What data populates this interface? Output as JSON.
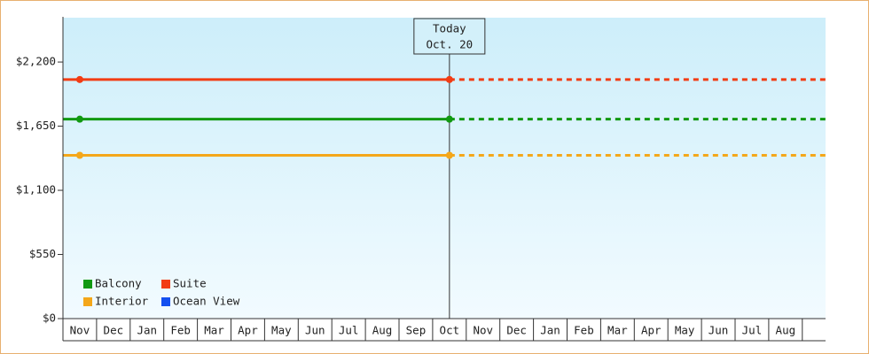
{
  "chart_data": {
    "type": "line",
    "categories": [
      "Nov",
      "Dec",
      "Jan",
      "Feb",
      "Mar",
      "Apr",
      "May",
      "Jun",
      "Jul",
      "Aug",
      "Sep",
      "Oct",
      "Nov",
      "Dec",
      "Jan",
      "Feb",
      "Mar",
      "Apr",
      "May",
      "Jun",
      "Jul",
      "Aug"
    ],
    "series": [
      {
        "name": "Balcony",
        "color": "#119911",
        "values": [
          1710,
          1710,
          1710,
          1710,
          1710,
          1710,
          1710,
          1710,
          1710,
          1710,
          1710,
          1710,
          null,
          null,
          null,
          null,
          null,
          null,
          null,
          null,
          null,
          null
        ]
      },
      {
        "name": "Suite",
        "color": "#f23c14",
        "values": [
          2050,
          2050,
          2050,
          2050,
          2050,
          2050,
          2050,
          2050,
          2050,
          2050,
          2050,
          2050,
          null,
          null,
          null,
          null,
          null,
          null,
          null,
          null,
          null,
          null
        ]
      },
      {
        "name": "Interior",
        "color": "#f4a71a",
        "values": [
          1400,
          1400,
          1400,
          1400,
          1400,
          1400,
          1400,
          1400,
          1400,
          1400,
          1400,
          1400,
          null,
          null,
          null,
          null,
          null,
          null,
          null,
          null,
          null,
          null
        ]
      },
      {
        "name": "Ocean View",
        "color": "#1450f0",
        "values": [
          null,
          null,
          null,
          null,
          null,
          null,
          null,
          null,
          null,
          null,
          null,
          null,
          null,
          null,
          null,
          null,
          null,
          null,
          null,
          null,
          null,
          null
        ]
      }
    ],
    "ylim": [
      0,
      2580
    ],
    "yticks": [
      {
        "value": 0,
        "label": "$0"
      },
      {
        "value": 550,
        "label": "$550"
      },
      {
        "value": 1100,
        "label": "$1,100"
      },
      {
        "value": 1650,
        "label": "$1,650"
      },
      {
        "value": 2200,
        "label": "$2,200"
      }
    ],
    "annotation": {
      "lines": [
        "Today",
        "Oct. 20"
      ],
      "category_index": 11
    },
    "legend": "lower left"
  }
}
